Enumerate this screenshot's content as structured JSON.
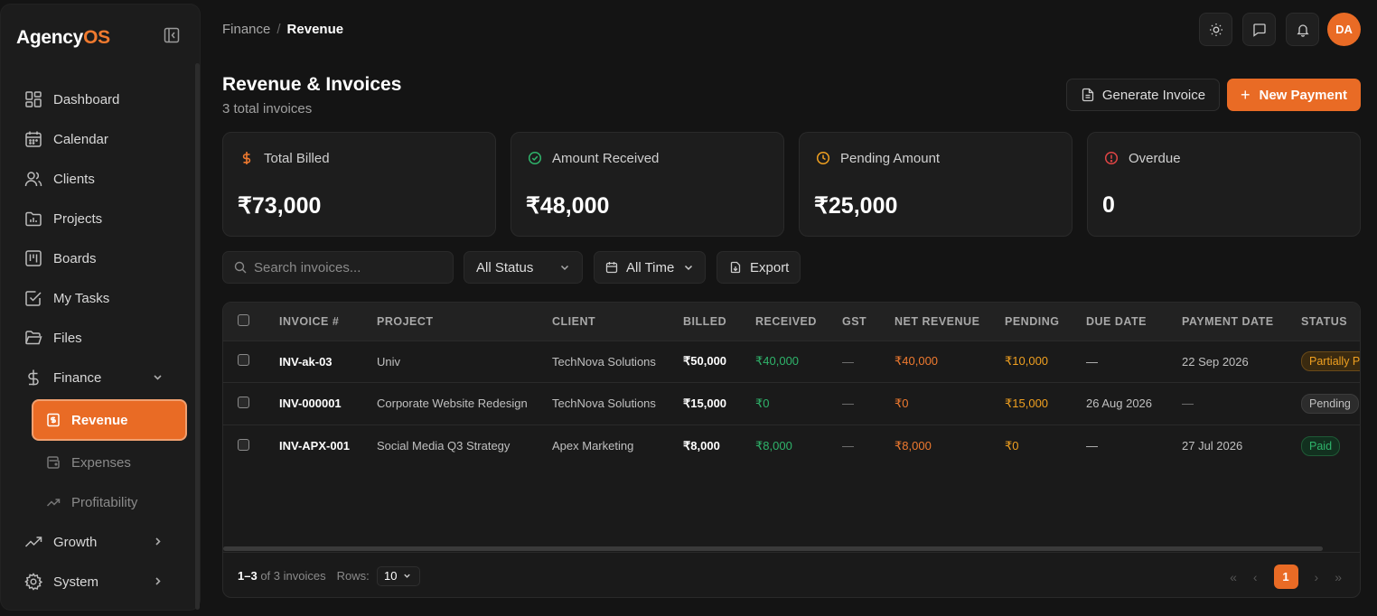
{
  "app": {
    "name_main": "Agency",
    "name_accent": "OS"
  },
  "sidebar": {
    "items": [
      {
        "label": "Dashboard",
        "icon": "dashboard-icon"
      },
      {
        "label": "Calendar",
        "icon": "calendar-icon"
      },
      {
        "label": "Clients",
        "icon": "users-icon"
      },
      {
        "label": "Projects",
        "icon": "folder-chart-icon"
      },
      {
        "label": "Boards",
        "icon": "kanban-icon"
      },
      {
        "label": "My Tasks",
        "icon": "checkbox-icon"
      },
      {
        "label": "Files",
        "icon": "folder-open-icon"
      },
      {
        "label": "Finance",
        "icon": "dollar-icon"
      }
    ],
    "finance_sub": [
      {
        "label": "Revenue",
        "active": true
      },
      {
        "label": "Expenses",
        "active": false
      },
      {
        "label": "Profitability",
        "active": false
      }
    ],
    "bottom": [
      {
        "label": "Growth",
        "icon": "trending-up-icon"
      },
      {
        "label": "System",
        "icon": "gear-icon"
      }
    ]
  },
  "breadcrumb": {
    "parent": "Finance",
    "sep": "/",
    "current": "Revenue"
  },
  "user": {
    "initials": "DA"
  },
  "page": {
    "title": "Revenue & Invoices",
    "subtitle": "3 total invoices"
  },
  "actions": {
    "generate": "Generate Invoice",
    "new_payment": "New Payment"
  },
  "stats": [
    {
      "label": "Total Billed",
      "value": "₹73,000",
      "icon": "dollar-icon",
      "color": "#f07a2f"
    },
    {
      "label": "Amount Received",
      "value": "₹48,000",
      "icon": "check-circle-icon",
      "color": "#2fb46b"
    },
    {
      "label": "Pending Amount",
      "value": "₹25,000",
      "icon": "clock-icon",
      "color": "#f0a020"
    },
    {
      "label": "Overdue",
      "value": "0",
      "icon": "alert-circle-icon",
      "color": "#e04545"
    }
  ],
  "filters": {
    "search_placeholder": "Search invoices...",
    "status": "All Status",
    "time": "All Time",
    "export": "Export"
  },
  "table": {
    "columns": [
      "INVOICE #",
      "PROJECT",
      "CLIENT",
      "BILLED",
      "RECEIVED",
      "GST",
      "NET REVENUE",
      "PENDING",
      "DUE DATE",
      "PAYMENT DATE",
      "STATUS"
    ],
    "rows": [
      {
        "invoice": "INV-ak-03",
        "project": "Univ",
        "client": "TechNova Solutions",
        "billed": "₹50,000",
        "received": "₹40,000",
        "gst": "—",
        "net": "₹40,000",
        "pending": "₹10,000",
        "due": "—",
        "paid_on": "22 Sep 2026",
        "status": "Partially Paid"
      },
      {
        "invoice": "INV-000001",
        "project": "Corporate Website Redesign",
        "client": "TechNova Solutions",
        "billed": "₹15,000",
        "received": "₹0",
        "gst": "—",
        "net": "₹0",
        "pending": "₹15,000",
        "due": "26 Aug 2026",
        "paid_on": "—",
        "status": "Pending"
      },
      {
        "invoice": "INV-APX-001",
        "project": "Social Media Q3 Strategy",
        "client": "Apex Marketing",
        "billed": "₹8,000",
        "received": "₹8,000",
        "gst": "—",
        "net": "₹8,000",
        "pending": "₹0",
        "due": "—",
        "paid_on": "27 Jul 2026",
        "status": "Paid"
      }
    ]
  },
  "footer": {
    "range": "1–3",
    "of_text": "of 3 invoices",
    "rows_label": "Rows:",
    "rows_value": "10",
    "page": "1"
  }
}
